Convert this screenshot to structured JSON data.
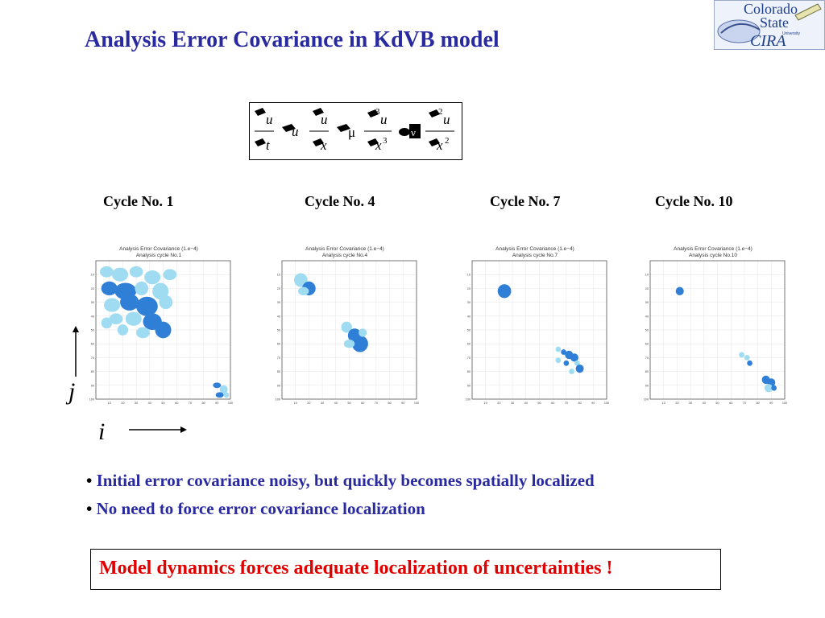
{
  "slide": {
    "title": "Analysis Error Covariance in KdVB model"
  },
  "logo": {
    "text_line1": "Colorado",
    "text_line2": "State",
    "text_line3": "University",
    "acronym": "CIRA"
  },
  "equation": {
    "u": "u",
    "x": "x",
    "t": "t",
    "exp_3": "3",
    "exp_2": "2",
    "mu": "μ",
    "nu": "ν"
  },
  "cycles": [
    {
      "label": "Cycle No. 1",
      "plot_title": "Analysis Error Covariance (1.e−4)",
      "plot_subtitle": "Analysis cycle No.1"
    },
    {
      "label": "Cycle No. 4",
      "plot_title": "Analysis Error Covariance (1.e−4)",
      "plot_subtitle": "Analysis cycle No.4"
    },
    {
      "label": "Cycle No. 7",
      "plot_title": "Analysis Error Covariance (1.e−4)",
      "plot_subtitle": "Analysis cycle No.7"
    },
    {
      "label": "Cycle No. 10",
      "plot_title": "Analysis Error Covariance (1.e−4)",
      "plot_subtitle": "Analysis cycle No.10"
    }
  ],
  "axes": {
    "j_label": "j",
    "i_label": "i",
    "ticks": [
      "10",
      "20",
      "30",
      "40",
      "50",
      "60",
      "70",
      "80",
      "90",
      "100"
    ]
  },
  "bullets": [
    "Initial error covariance noisy, but quickly becomes spatially localized",
    "No need to force error covariance localization"
  ],
  "conclusion": "Model dynamics forces adequate localization of uncertainties !",
  "colors": {
    "title": "#2a2aa0",
    "conclusion": "#e00000",
    "dark_blue": "#2f7fd6",
    "light_blue": "#9fdcf2"
  }
}
